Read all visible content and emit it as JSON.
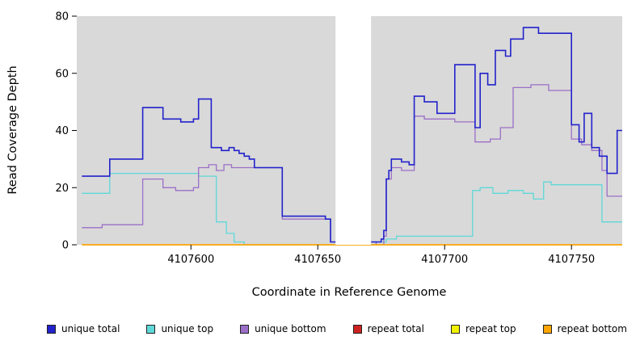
{
  "chart_data": {
    "type": "line",
    "subtype": "step-after",
    "title": "",
    "xlabel": "Coordinate in Reference Genome",
    "ylabel": "Read Coverage Depth",
    "x_range": [
      4107555,
      4107770
    ],
    "y_range": [
      0,
      80
    ],
    "x_ticks": [
      4107600,
      4107650,
      4107700,
      4107750
    ],
    "y_ticks": [
      0,
      20,
      40,
      60,
      80
    ],
    "plot_bg": "#d9d9d9",
    "gap_region": [
      4107657,
      4107671
    ],
    "grid": false,
    "legend_position": "bottom",
    "draw_order": [
      1,
      2,
      0,
      3,
      4,
      5
    ],
    "series": [
      {
        "name": "unique total",
        "color": "#2222cc",
        "width": 1.6,
        "points": [
          [
            4107557,
            24
          ],
          [
            4107568,
            30
          ],
          [
            4107581,
            48
          ],
          [
            4107589,
            44
          ],
          [
            4107596,
            43
          ],
          [
            4107601,
            44
          ],
          [
            4107603,
            51
          ],
          [
            4107608,
            34
          ],
          [
            4107612,
            33
          ],
          [
            4107615,
            34
          ],
          [
            4107617,
            33
          ],
          [
            4107619,
            32
          ],
          [
            4107621,
            31
          ],
          [
            4107623,
            30
          ],
          [
            4107625,
            27
          ],
          [
            4107636,
            10
          ],
          [
            4107653,
            9
          ],
          [
            4107655,
            1
          ],
          [
            4107673,
            1
          ],
          [
            4107675,
            2
          ],
          [
            4107676,
            5
          ],
          [
            4107677,
            23
          ],
          [
            4107678,
            26
          ],
          [
            4107679,
            30
          ],
          [
            4107683,
            29
          ],
          [
            4107686,
            28
          ],
          [
            4107688,
            52
          ],
          [
            4107692,
            50
          ],
          [
            4107697,
            46
          ],
          [
            4107704,
            63
          ],
          [
            4107712,
            41
          ],
          [
            4107714,
            60
          ],
          [
            4107717,
            56
          ],
          [
            4107720,
            68
          ],
          [
            4107724,
            66
          ],
          [
            4107726,
            72
          ],
          [
            4107731,
            76
          ],
          [
            4107737,
            74
          ],
          [
            4107750,
            42
          ],
          [
            4107753,
            36
          ],
          [
            4107755,
            46
          ],
          [
            4107758,
            34
          ],
          [
            4107761,
            31
          ],
          [
            4107764,
            25
          ],
          [
            4107768,
            40
          ]
        ]
      },
      {
        "name": "unique top",
        "color": "#5fd8d8",
        "width": 1.3,
        "points": [
          [
            4107557,
            18
          ],
          [
            4107568,
            25
          ],
          [
            4107603,
            24
          ],
          [
            4107610,
            8
          ],
          [
            4107614,
            4
          ],
          [
            4107617,
            1
          ],
          [
            4107621,
            0
          ],
          [
            4107673,
            1
          ],
          [
            4107677,
            2
          ],
          [
            4107681,
            3
          ],
          [
            4107711,
            19
          ],
          [
            4107714,
            20
          ],
          [
            4107719,
            18
          ],
          [
            4107725,
            19
          ],
          [
            4107731,
            18
          ],
          [
            4107735,
            16
          ],
          [
            4107739,
            22
          ],
          [
            4107742,
            21
          ],
          [
            4107762,
            8
          ]
        ]
      },
      {
        "name": "unique bottom",
        "color": "#9b6fc8",
        "width": 1.3,
        "points": [
          [
            4107557,
            6
          ],
          [
            4107565,
            7
          ],
          [
            4107581,
            23
          ],
          [
            4107589,
            20
          ],
          [
            4107594,
            19
          ],
          [
            4107601,
            20
          ],
          [
            4107603,
            27
          ],
          [
            4107607,
            28
          ],
          [
            4107610,
            26
          ],
          [
            4107613,
            28
          ],
          [
            4107616,
            27
          ],
          [
            4107636,
            9
          ],
          [
            4107655,
            1
          ],
          [
            4107673,
            0
          ],
          [
            4107676,
            3
          ],
          [
            4107677,
            23
          ],
          [
            4107679,
            27
          ],
          [
            4107683,
            26
          ],
          [
            4107688,
            45
          ],
          [
            4107692,
            44
          ],
          [
            4107704,
            43
          ],
          [
            4107712,
            36
          ],
          [
            4107718,
            37
          ],
          [
            4107722,
            41
          ],
          [
            4107727,
            55
          ],
          [
            4107734,
            56
          ],
          [
            4107741,
            54
          ],
          [
            4107750,
            37
          ],
          [
            4107754,
            35
          ],
          [
            4107758,
            33
          ],
          [
            4107762,
            26
          ],
          [
            4107764,
            17
          ]
        ]
      },
      {
        "name": "repeat total",
        "color": "#cc2222",
        "width": 1.3,
        "points": [
          [
            4107557,
            0
          ]
        ]
      },
      {
        "name": "repeat top",
        "color": "#f2f200",
        "width": 1.3,
        "points": [
          [
            4107557,
            0
          ]
        ]
      },
      {
        "name": "repeat bottom",
        "color": "#ffa500",
        "width": 1.6,
        "points": [
          [
            4107557,
            0
          ]
        ]
      }
    ],
    "legend": [
      {
        "label": "unique total",
        "color": "#2222cc"
      },
      {
        "label": "unique top",
        "color": "#5fd8d8"
      },
      {
        "label": "unique bottom",
        "color": "#9b6fc8"
      },
      {
        "label": "repeat total",
        "color": "#cc2222"
      },
      {
        "label": "repeat top",
        "color": "#f2f200"
      },
      {
        "label": "repeat bottom",
        "color": "#ffa500"
      }
    ]
  }
}
